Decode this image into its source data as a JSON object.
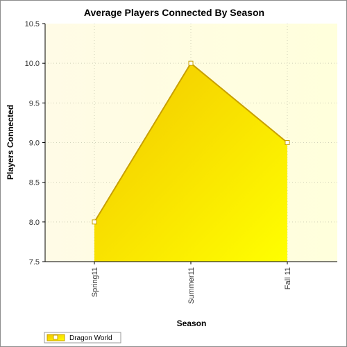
{
  "chart_data": {
    "type": "area",
    "title": "Average Players Connected By Season",
    "xlabel": "Season",
    "ylabel": "Players Connected",
    "categories": [
      "Spring11",
      "Summer11",
      "Fall 11"
    ],
    "series": [
      {
        "name": "Dragon World",
        "values": [
          8.0,
          10.0,
          9.0
        ]
      }
    ],
    "ylim": [
      7.5,
      10.5
    ],
    "yticks": [
      "7.5",
      "8.0",
      "8.5",
      "9.0",
      "9.5",
      "10.0",
      "10.5"
    ],
    "grid": true,
    "legend_position": "bottom-left",
    "colors": {
      "area_top": "#f0c800",
      "area_bottom": "#ffff00",
      "line": "#c8a000",
      "marker_fill": "#ffffff",
      "plot_bg": "#fffde8",
      "plot_bg_light": "#ffffdc"
    }
  }
}
